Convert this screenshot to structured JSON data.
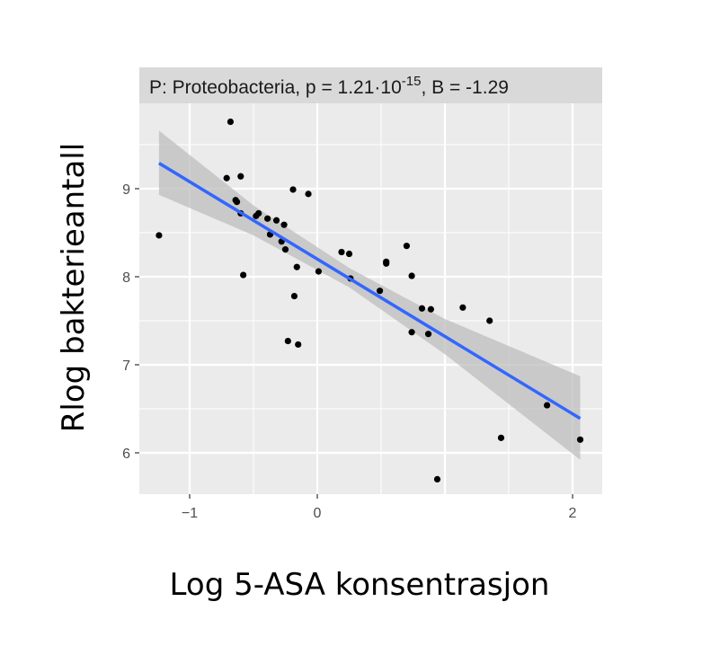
{
  "chart_data": {
    "type": "scatter",
    "strip_label": {
      "prefix": "P: Proteobacteria, p = 1.21·10",
      "exponent": "-15",
      "suffix": ", B = -1.29"
    },
    "xlabel": "Log 5-ASA konsentrasjon",
    "ylabel": "Rlog bakterieantall",
    "xlim": [
      -1.4,
      2.2
    ],
    "ylim": [
      5.5,
      9.95
    ],
    "xticks": [
      -1,
      0,
      2
    ],
    "xtick_labels": [
      "−1",
      "0",
      "2"
    ],
    "yticks": [
      6,
      7,
      8,
      9
    ],
    "ytick_labels": [
      "6",
      "7",
      "8",
      "9"
    ],
    "grid": true,
    "colors": {
      "panel": "#ebebeb",
      "strip": "#d9d9d9",
      "line": "#3366ff",
      "band": "#bdbdbd",
      "point": "#000000"
    },
    "points": [
      [
        -1.24,
        8.47
      ],
      [
        -0.68,
        9.76
      ],
      [
        -0.71,
        9.12
      ],
      [
        -0.6,
        9.14
      ],
      [
        -0.64,
        8.87
      ],
      [
        -0.63,
        8.85
      ],
      [
        -0.6,
        8.72
      ],
      [
        -0.58,
        8.02
      ],
      [
        -0.48,
        8.69
      ],
      [
        -0.46,
        8.72
      ],
      [
        -0.39,
        8.66
      ],
      [
        -0.32,
        8.64
      ],
      [
        -0.26,
        8.59
      ],
      [
        -0.37,
        8.48
      ],
      [
        -0.28,
        8.4
      ],
      [
        -0.25,
        8.31
      ],
      [
        -0.19,
        8.99
      ],
      [
        -0.07,
        8.94
      ],
      [
        -0.16,
        8.11
      ],
      [
        -0.18,
        7.78
      ],
      [
        -0.23,
        7.27
      ],
      [
        -0.15,
        7.23
      ],
      [
        0.01,
        8.06
      ],
      [
        0.19,
        8.28
      ],
      [
        0.25,
        8.26
      ],
      [
        0.26,
        7.98
      ],
      [
        0.49,
        7.84
      ],
      [
        0.54,
        8.17
      ],
      [
        0.54,
        8.15
      ],
      [
        0.7,
        8.35
      ],
      [
        0.74,
        8.01
      ],
      [
        0.74,
        7.37
      ],
      [
        0.82,
        7.64
      ],
      [
        0.89,
        7.63
      ],
      [
        0.87,
        7.35
      ],
      [
        0.94,
        5.7
      ],
      [
        1.14,
        7.65
      ],
      [
        1.35,
        7.5
      ],
      [
        1.44,
        6.17
      ],
      [
        1.8,
        6.54
      ],
      [
        2.06,
        6.15
      ]
    ],
    "fit": {
      "x_range": [
        -1.24,
        2.06
      ],
      "y_at_ends": [
        9.29,
        6.39
      ]
    },
    "confidence_band": [
      {
        "x": -1.24,
        "lower": 8.93,
        "upper": 9.66
      },
      {
        "x": -0.5,
        "lower": 8.47,
        "upper": 8.81
      },
      {
        "x": 0.25,
        "lower": 7.88,
        "upper": 8.1
      },
      {
        "x": 1.0,
        "lower": 7.12,
        "upper": 7.52
      },
      {
        "x": 2.06,
        "lower": 5.92,
        "upper": 6.87
      }
    ]
  }
}
